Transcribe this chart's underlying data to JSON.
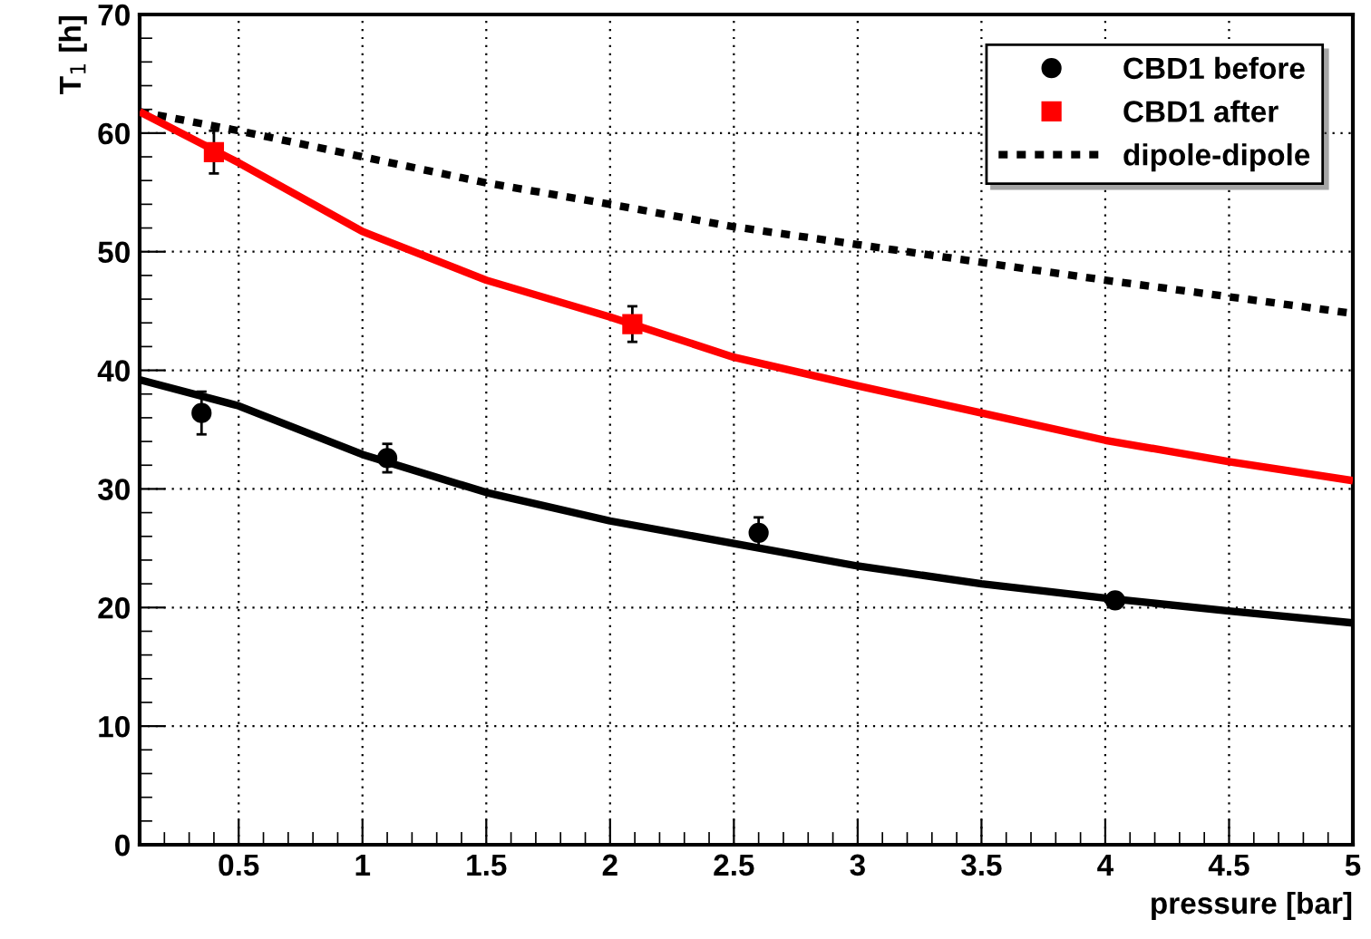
{
  "chart_data": {
    "type": "scatter",
    "xlabel": "pressure [bar]",
    "ylabel": "T$_{1}$ [h]",
    "xlim": [
      0.1,
      5
    ],
    "ylim": [
      0,
      70
    ],
    "xticks": [
      0.5,
      1,
      1.5,
      2,
      2.5,
      3,
      3.5,
      4,
      4.5,
      5
    ],
    "yticks": [
      0,
      10,
      20,
      30,
      40,
      50,
      60,
      70
    ],
    "grid": true,
    "legend": "top right",
    "series": [
      {
        "name": "CBD1 before",
        "marker": "circle",
        "color": "#000000",
        "x": [
          0.35,
          1.1,
          2.6,
          4.04
        ],
        "values": [
          36.4,
          32.6,
          26.3,
          20.6
        ],
        "errors": [
          1.8,
          1.2,
          1.3,
          0.5
        ]
      },
      {
        "name": "CBD1 after",
        "marker": "square",
        "color": "#ff0000",
        "x": [
          0.4,
          2.09
        ],
        "values": [
          58.4,
          43.9
        ],
        "errors": [
          1.8,
          1.5
        ]
      },
      {
        "name": "dipole-dipole",
        "type": "line",
        "line_style": "dotted",
        "color": "#000000",
        "x": [
          0.1,
          0.5,
          1,
          1.5,
          2,
          2.5,
          3,
          3.5,
          4,
          4.5,
          5
        ],
        "values": [
          61.8,
          60.2,
          58.0,
          55.8,
          54.0,
          52.1,
          50.6,
          49.1,
          47.6,
          46.2,
          44.8
        ]
      },
      {
        "type": "line",
        "line_style": "solid",
        "color": "#000000",
        "x": [
          0.1,
          0.5,
          1,
          1.5,
          2,
          2.5,
          3,
          3.5,
          4,
          4.5,
          5
        ],
        "values": [
          39.2,
          37.0,
          32.9,
          29.7,
          27.3,
          25.4,
          23.5,
          22.0,
          20.8,
          19.7,
          18.7
        ]
      },
      {
        "type": "line",
        "line_style": "solid",
        "color": "#ff0000",
        "x": [
          0.1,
          0.5,
          1,
          1.5,
          2,
          2.5,
          3,
          3.5,
          4,
          4.5,
          5
        ],
        "values": [
          61.8,
          57.5,
          51.7,
          47.6,
          44.5,
          41.1,
          38.7,
          36.4,
          34.1,
          32.3,
          30.7
        ]
      }
    ]
  }
}
